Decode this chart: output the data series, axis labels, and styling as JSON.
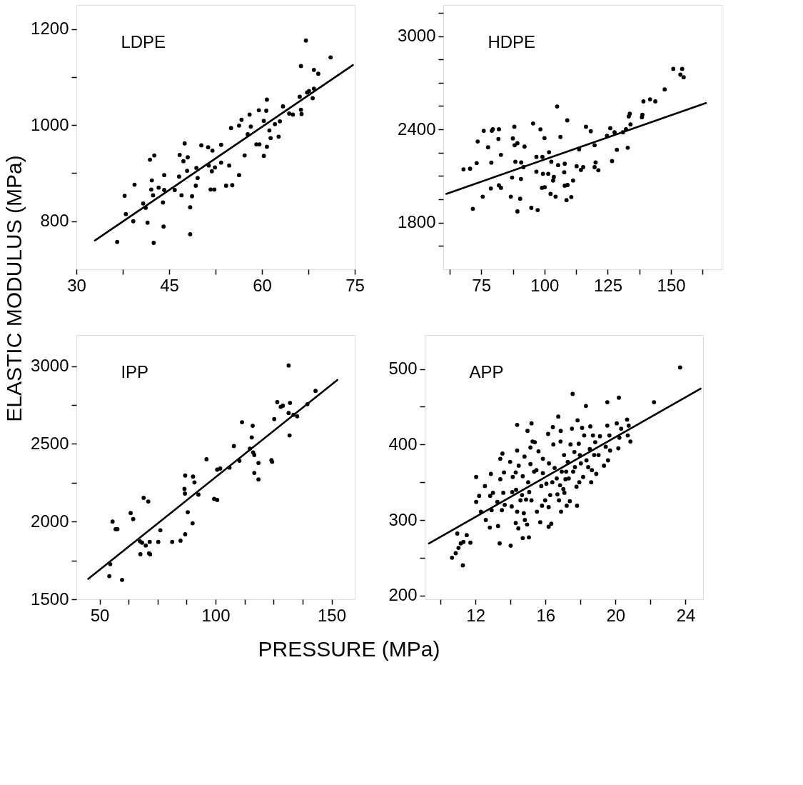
{
  "chart_data": [
    {
      "type": "scatter",
      "title": "LDPE",
      "ylabel": "ELASTIC MODULUS (MPa)",
      "xlim": [
        30,
        75
      ],
      "ylim": [
        700,
        1250
      ],
      "xticks": [
        30,
        {
          "value": 37.5,
          "label": null
        },
        45,
        {
          "value": 52.5,
          "label": null
        },
        60,
        {
          "value": 67.5,
          "label": null
        },
        75
      ],
      "yticks": [
        800,
        {
          "value": 900,
          "label": null
        },
        1000,
        {
          "value": 1100,
          "label": null
        },
        1200
      ],
      "grid": false,
      "series": [
        {
          "type": "scatter",
          "marker": "circle",
          "color": "#000000",
          "x": [
            36.6,
            37.8,
            38.0,
            39.2,
            39.4,
            40.8,
            41.2,
            41.5,
            41.9,
            42.6,
            42.2,
            42.1,
            42.4,
            42.5,
            43.3,
            44.0,
            44.1,
            44.2,
            44.2,
            45.9,
            46.7,
            46.6,
            47.0,
            47.3,
            47.5,
            48.0,
            47.9,
            48.4,
            48.4,
            48.7,
            49.3,
            49.4,
            49.6,
            50.2,
            51.3,
            52.0,
            51.4,
            51.7,
            52.3,
            51.9,
            52.4,
            53.4,
            53.4,
            54.2,
            54.7,
            55.0,
            55.2,
            56.3,
            56.7,
            56.3,
            57.2,
            57.7,
            58.0,
            58.2,
            59.1,
            59.6,
            59.5,
            60.3,
            60.3,
            60.7,
            60.8,
            60.8,
            61.2,
            61.4,
            62.1,
            62.7,
            62.9,
            63.4,
            64.4,
            65.0,
            66.1,
            66.3,
            66.3,
            66.4,
            67.1,
            67.3,
            67.6,
            68.2,
            68.4,
            68.4,
            69.1,
            71.1
          ],
          "values": [
            757,
            853,
            815,
            800,
            876,
            837,
            828,
            797,
            928,
            937,
            885,
            866,
            854,
            755,
            870,
            839,
            789,
            896,
            865,
            865,
            938,
            893,
            854,
            925,
            962,
            933,
            905,
            829,
            773,
            852,
            874,
            911,
            890,
            958,
            954,
            947,
            916,
            866,
            866,
            904,
            912,
            959,
            922,
            874,
            916,
            994,
            875,
            999,
            1011,
            896,
            937,
            981,
            1022,
            997,
            960,
            960,
            1031,
            1009,
            936,
            1030,
            1053,
            955,
            989,
            973,
            1002,
            976,
            1008,
            1039,
            1024,
            1022,
            1059,
            1123,
            1032,
            1023,
            1176,
            1068,
            1071,
            1056,
            1115,
            1076,
            1107,
            1141
          ]
        },
        {
          "type": "line",
          "color": "#000000",
          "x": [
            33.0,
            74.7
          ],
          "values": [
            760,
            1125
          ]
        }
      ]
    },
    {
      "type": "scatter",
      "title": "HDPE",
      "xlim": [
        60,
        170
      ],
      "ylim": [
        1500,
        3200
      ],
      "xticks": [
        {
          "value": 62.5,
          "label": null
        },
        75,
        {
          "value": 87.5,
          "label": null
        },
        100,
        {
          "value": 112.5,
          "label": null
        },
        125,
        {
          "value": 137.5,
          "label": null
        },
        150,
        {
          "value": 162.5,
          "label": null
        }
      ],
      "yticks": [
        {
          "value": 1650,
          "label": null
        },
        1800,
        {
          "value": 1950,
          "label": null
        },
        {
          "value": 2100,
          "label": null
        },
        {
          "value": 2250,
          "label": null
        },
        2400,
        {
          "value": 2550,
          "label": null
        },
        {
          "value": 2700,
          "label": null
        },
        {
          "value": 2850,
          "label": null
        },
        3000,
        {
          "value": 3150,
          "label": null
        }
      ],
      "grid": false,
      "series": [
        {
          "type": "scatter",
          "marker": "circle",
          "color": "#000000",
          "x": [
            68.0,
            70.6,
            71.7,
            73.2,
            73.6,
            75.6,
            76.0,
            77.7,
            78.8,
            79.0,
            79.2,
            79.6,
            81.8,
            82.0,
            82.0,
            82.8,
            82.8,
            86.7,
            87.2,
            87.5,
            88.1,
            88.2,
            88.5,
            89.3,
            89.3,
            90.4,
            90.7,
            90.8,
            91.7,
            92.1,
            94.8,
            95.5,
            96.8,
            96.8,
            97.3,
            98.4,
            99.0,
            99.2,
            99.4,
            100,
            100.1,
            101.5,
            101.8,
            102.4,
            102.7,
            103.4,
            103.7,
            104.4,
            105.0,
            105.4,
            106.3,
            107.8,
            108.0,
            108.0,
            108.7,
            109.0,
            109.1,
            110.6,
            111.3,
            112.7,
            113.7,
            114.4,
            115.3,
            116.4,
            118.3,
            119.8,
            119.8,
            120.2,
            121.3,
            124.7,
            126.0,
            126.7,
            127.7,
            128.6,
            131.0,
            132.2,
            132.9,
            133.3,
            133.7,
            134.0,
            138.5,
            138.7,
            139.1,
            141.7,
            143.8,
            147.5,
            150.9,
            153.7,
            154.4,
            155.0
          ],
          "values": [
            2143,
            2147,
            1889,
            2183,
            2322,
            1967,
            2391,
            2285,
            2020,
            2186,
            2391,
            2401,
            2338,
            2401,
            2040,
            2024,
            2236,
            1967,
            2090,
            2342,
            2417,
            2298,
            2192,
            2311,
            1872,
            1954,
            2081,
            2187,
            2157,
            2289,
            1895,
            2438,
            2223,
            2128,
            1881,
            2400,
            2024,
            2223,
            2114,
            2344,
            2028,
            2114,
            2253,
            1985,
            2192,
            2071,
            2094,
            1967,
            2547,
            2170,
            2351,
            2124,
            2179,
            2038,
            1945,
            2458,
            2042,
            1965,
            2071,
            2163,
            2272,
            2139,
            2157,
            2417,
            2388,
            2298,
            2157,
            2187,
            2137,
            2359,
            2408,
            2196,
            2381,
            2269,
            2381,
            2401,
            2282,
            2483,
            2501,
            2432,
            2478,
            2494,
            2580,
            2593,
            2580,
            2657,
            2789,
            2752,
            2789,
            2735
          ]
        },
        {
          "type": "line",
          "color": "#000000",
          "x": [
            61.2,
            163.8
          ],
          "values": [
            1985,
            2569
          ]
        }
      ]
    },
    {
      "type": "scatter",
      "title": "IPP",
      "xlabel": "PRESSURE (MPa)",
      "xlim": [
        40,
        160
      ],
      "ylim": [
        1500,
        3200
      ],
      "xticks": [
        50,
        {
          "value": 62.5,
          "label": null
        },
        {
          "value": 75,
          "label": null
        },
        {
          "value": 87.5,
          "label": null
        },
        100,
        {
          "value": 112.5,
          "label": null
        },
        {
          "value": 125,
          "label": null
        },
        {
          "value": 137.5,
          "label": null
        },
        150
      ],
      "yticks": [
        1500,
        {
          "value": 1750,
          "label": null
        },
        2000,
        {
          "value": 2250,
          "label": null
        },
        2500,
        {
          "value": 2750,
          "label": null
        },
        3000
      ],
      "grid": false,
      "series": [
        {
          "type": "scatter",
          "marker": "circle",
          "color": "#000000",
          "x": [
            54.2,
            54.6,
            55.6,
            56.9,
            57.7,
            59.7,
            63.4,
            64.5,
            67.4,
            67.6,
            68.3,
            69.0,
            69.9,
            71.0,
            71.3,
            71.6,
            71.8,
            75.3,
            76.2,
            81.3,
            84.9,
            86.9,
            86.6,
            86.8,
            86.9,
            88.0,
            90.1,
            90.3,
            90.9,
            92.6,
            96.1,
            99.4,
            100.7,
            100.7,
            102.0,
            106.0,
            107.9,
            110.3,
            111.4,
            114.8,
            115.6,
            116.0,
            116.2,
            116.7,
            116.7,
            118.5,
            118.5,
            124.1,
            124.4,
            125.3,
            126.6,
            128.1,
            129.0,
            131.5,
            131.5,
            131.9,
            132.1,
            133.6,
            135.2,
            139.6,
            143.1
          ],
          "values": [
            1649,
            1726,
            2000,
            1951,
            1951,
            1625,
            2055,
            2016,
            1873,
            1790,
            1864,
            2153,
            1846,
            2129,
            1796,
            1869,
            1789,
            1869,
            1944,
            1869,
            1877,
            1918,
            2210,
            2180,
            2296,
            2060,
            1989,
            2289,
            2252,
            2173,
            2401,
            2146,
            2139,
            2334,
            2341,
            2347,
            2486,
            2391,
            2639,
            2469,
            2541,
            2616,
            2445,
            2428,
            2313,
            2377,
            2271,
            2395,
            2384,
            2659,
            2768,
            2738,
            2745,
            3004,
            2698,
            2554,
            2763,
            2687,
            2677,
            2755,
            2841
          ]
        },
        {
          "type": "line",
          "color": "#000000",
          "x": [
            45.1,
            152.5
          ],
          "values": [
            1631,
            2911
          ]
        }
      ]
    },
    {
      "type": "scatter",
      "title": "APP",
      "xlim": [
        9.1,
        25
      ],
      "ylim": [
        195,
        545
      ],
      "xticks": [
        {
          "value": 10,
          "label": null
        },
        12,
        {
          "value": 14,
          "label": null
        },
        16,
        {
          "value": 18,
          "label": null
        },
        20,
        {
          "value": 22,
          "label": null
        },
        24
      ],
      "yticks": [
        200,
        {
          "value": 250,
          "label": null
        },
        300,
        {
          "value": 350,
          "label": null
        },
        400,
        {
          "value": 450,
          "label": null
        },
        500
      ],
      "grid": false,
      "series": [
        {
          "type": "scatter",
          "marker": "circle",
          "color": "#000000",
          "x": [
            10.66,
            10.87,
            10.96,
            11.03,
            11.16,
            11.28,
            11.31,
            11.5,
            11.71,
            12.04,
            12.04,
            12.21,
            12.31,
            12.54,
            12.59,
            12.82,
            12.84,
            12.88,
            12.92,
            13.0,
            13.25,
            13.29,
            13.38,
            13.42,
            13.42,
            13.51,
            13.54,
            13.59,
            13.63,
            13.67,
            13.98,
            14.01,
            14.07,
            14.1,
            14.13,
            14.3,
            14.3,
            14.32,
            14.38,
            14.38,
            14.38,
            14.45,
            14.47,
            14.57,
            14.66,
            14.7,
            14.7,
            14.76,
            14.8,
            14.82,
            14.89,
            14.95,
            14.97,
            15.01,
            15.05,
            15.07,
            15.14,
            15.14,
            15.2,
            15.2,
            15.26,
            15.35,
            15.39,
            15.48,
            15.51,
            15.6,
            15.7,
            15.76,
            15.8,
            15.85,
            15.85,
            15.98,
            16.05,
            16.15,
            16.18,
            16.2,
            16.18,
            16.27,
            16.33,
            16.39,
            16.42,
            16.45,
            16.52,
            16.64,
            16.68,
            16.73,
            16.77,
            16.83,
            16.86,
            16.87,
            16.89,
            16.93,
            17.02,
            17.06,
            17.08,
            17.14,
            17.18,
            17.21,
            17.27,
            17.33,
            17.39,
            17.43,
            17.51,
            17.55,
            17.58,
            17.65,
            17.68,
            17.77,
            17.8,
            17.83,
            17.9,
            17.93,
            17.96,
            18.02,
            18.09,
            18.15,
            18.21,
            18.31,
            18.34,
            18.44,
            18.53,
            18.56,
            18.61,
            18.65,
            18.71,
            18.78,
            18.84,
            18.9,
            19.03,
            19.11,
            19.34,
            19.44,
            19.53,
            19.57,
            19.53,
            19.65,
            19.69,
            20.07,
            20.16,
            20.19,
            20.22,
            20.32,
            20.66,
            20.75,
            20.7,
            20.85,
            22.2,
            23.69
          ],
          "values": [
            250,
            256,
            282,
            263,
            269,
            240,
            271,
            280,
            270,
            357,
            324,
            332,
            311,
            345,
            300,
            290,
            332,
            361,
            313,
            336,
            324,
            292,
            269,
            381,
            354,
            313,
            388,
            336,
            363,
            320,
            377,
            266,
            318,
            337,
            357,
            363,
            296,
            340,
            392,
            426,
            311,
            289,
            372,
            326,
            333,
            358,
            276,
            309,
            384,
            300,
            327,
            294,
            418,
            350,
            277,
            337,
            374,
            396,
            428,
            326,
            404,
            364,
            403,
            366,
            311,
            391,
            297,
            345,
            319,
            381,
            362,
            326,
            348,
            414,
            317,
            375,
            291,
            333,
            295,
            350,
            423,
            400,
            369,
            355,
            334,
            437,
            326,
            346,
            404,
            418,
            311,
            364,
            341,
            386,
            336,
            354,
            364,
            319,
            377,
            355,
            325,
            400,
            421,
            467,
            364,
            390,
            370,
            344,
            319,
            432,
            401,
            350,
            386,
            375,
            422,
            357,
            412,
            451,
            379,
            370,
            394,
            424,
            350,
            366,
            412,
            386,
            403,
            361,
            386,
            411,
            372,
            397,
            425,
            379,
            456,
            412,
            392,
            428,
            395,
            462,
            409,
            421,
            433,
            425,
            412,
            404,
            456,
            502
          ]
        },
        {
          "type": "line",
          "color": "#000000",
          "x": [
            9.34,
            24.86
          ],
          "values": [
            269,
            474
          ]
        }
      ]
    }
  ]
}
